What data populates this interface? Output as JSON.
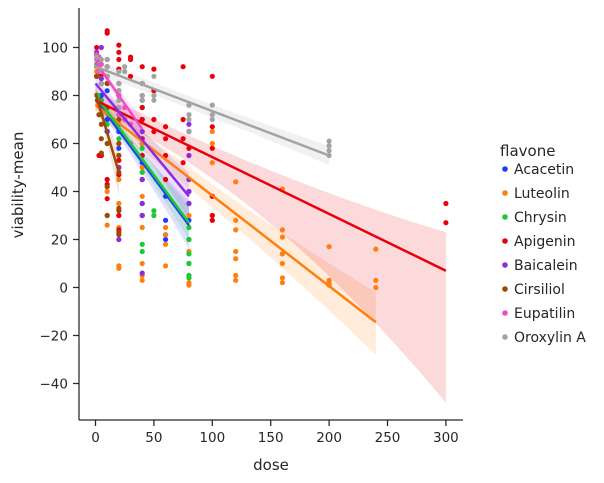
{
  "chart_data": {
    "type": "scatter",
    "subtype": "scatter-with-linear-regression-and-95%-ci-bands",
    "xlabel": "dose",
    "ylabel": "viability-mean",
    "xlim": [
      -13,
      315
    ],
    "ylim": [
      -56,
      115
    ],
    "xticks": [
      0,
      50,
      100,
      150,
      200,
      250,
      300
    ],
    "yticks": [
      -40,
      -20,
      0,
      20,
      40,
      60,
      80,
      100
    ],
    "grid": false,
    "legend": {
      "title": "flavone",
      "placement": "right"
    },
    "series": [
      {
        "name": "Acacetin",
        "color": "#1f3bff",
        "points": [
          [
            1,
            92
          ],
          [
            1,
            88
          ],
          [
            2,
            95
          ],
          [
            3,
            90
          ],
          [
            5,
            85
          ],
          [
            5,
            80
          ],
          [
            5,
            78
          ],
          [
            10,
            88
          ],
          [
            10,
            82
          ],
          [
            10,
            75
          ],
          [
            10,
            70
          ],
          [
            10,
            65
          ],
          [
            20,
            80
          ],
          [
            20,
            72
          ],
          [
            20,
            65
          ],
          [
            20,
            58
          ],
          [
            20,
            50
          ],
          [
            40,
            80
          ],
          [
            40,
            70
          ],
          [
            40,
            60
          ],
          [
            40,
            52
          ],
          [
            40,
            45
          ],
          [
            60,
            38
          ],
          [
            60,
            28
          ],
          [
            60,
            22
          ],
          [
            60,
            20
          ],
          [
            80,
            35
          ],
          [
            80,
            28
          ],
          [
            80,
            20
          ]
        ],
        "fit": {
          "x0": 0,
          "x1": 80,
          "y0": 78.5,
          "y1": 26,
          "ci_lo": [
            76,
            16
          ],
          "ci_hi": [
            82,
            36
          ]
        }
      },
      {
        "name": "Luteolin",
        "color": "#ff7f0e",
        "points": [
          [
            1,
            90
          ],
          [
            1,
            80
          ],
          [
            2,
            76
          ],
          [
            5,
            88
          ],
          [
            5,
            55
          ],
          [
            10,
            45
          ],
          [
            10,
            40
          ],
          [
            10,
            30
          ],
          [
            10,
            26
          ],
          [
            20,
            82
          ],
          [
            20,
            75
          ],
          [
            20,
            60
          ],
          [
            20,
            50
          ],
          [
            20,
            45
          ],
          [
            20,
            35
          ],
          [
            20,
            30
          ],
          [
            20,
            25
          ],
          [
            20,
            9
          ],
          [
            20,
            8
          ],
          [
            40,
            60
          ],
          [
            40,
            50
          ],
          [
            40,
            48
          ],
          [
            40,
            45
          ],
          [
            40,
            38
          ],
          [
            40,
            30
          ],
          [
            40,
            25
          ],
          [
            40,
            10
          ],
          [
            40,
            5
          ],
          [
            40,
            3
          ],
          [
            60,
            25
          ],
          [
            60,
            22
          ],
          [
            60,
            18
          ],
          [
            60,
            9
          ],
          [
            80,
            40
          ],
          [
            80,
            35
          ],
          [
            80,
            30
          ],
          [
            80,
            20
          ],
          [
            80,
            15
          ],
          [
            80,
            10
          ],
          [
            80,
            5
          ],
          [
            80,
            2
          ],
          [
            80,
            1
          ],
          [
            100,
            65
          ],
          [
            100,
            60
          ],
          [
            100,
            52
          ],
          [
            100,
            38
          ],
          [
            100,
            30
          ],
          [
            100,
            28
          ],
          [
            120,
            44
          ],
          [
            120,
            28
          ],
          [
            120,
            24
          ],
          [
            120,
            15
          ],
          [
            120,
            12
          ],
          [
            120,
            5
          ],
          [
            120,
            3
          ],
          [
            160,
            41
          ],
          [
            160,
            24
          ],
          [
            160,
            21
          ],
          [
            160,
            14
          ],
          [
            160,
            10
          ],
          [
            160,
            4
          ],
          [
            160,
            2
          ],
          [
            200,
            17
          ],
          [
            200,
            3
          ],
          [
            200,
            2
          ],
          [
            200,
            1
          ],
          [
            240,
            16
          ],
          [
            240,
            3
          ],
          [
            240,
            0
          ]
        ],
        "fit": {
          "x0": 0,
          "x1": 240,
          "y0": 76,
          "y1": -14.5,
          "ci_lo": [
            72,
            -28
          ],
          "ci_hi": [
            80,
            -2
          ]
        }
      },
      {
        "name": "Chrysin",
        "color": "#1ac938",
        "points": [
          [
            1,
            93
          ],
          [
            1,
            88
          ],
          [
            2,
            80
          ],
          [
            5,
            78
          ],
          [
            5,
            72
          ],
          [
            10,
            85
          ],
          [
            10,
            68
          ],
          [
            20,
            78
          ],
          [
            20,
            62
          ],
          [
            20,
            55
          ],
          [
            20,
            47
          ],
          [
            40,
            75
          ],
          [
            40,
            58
          ],
          [
            40,
            48
          ],
          [
            40,
            35
          ],
          [
            40,
            30
          ],
          [
            40,
            18
          ],
          [
            40,
            15
          ],
          [
            50,
            32
          ],
          [
            50,
            30
          ],
          [
            80,
            25
          ],
          [
            80,
            20
          ],
          [
            80,
            14
          ],
          [
            80,
            10
          ],
          [
            80,
            5
          ],
          [
            80,
            4
          ]
        ],
        "fit": {
          "x0": 0,
          "x1": 80,
          "y0": 80,
          "y1": 27,
          "ci_lo": [
            77,
            20
          ],
          "ci_hi": [
            83,
            34
          ]
        }
      },
      {
        "name": "Apigenin",
        "color": "#e8000b",
        "points": [
          [
            1,
            100
          ],
          [
            1,
            97
          ],
          [
            1,
            92
          ],
          [
            1,
            88
          ],
          [
            3,
            96
          ],
          [
            3,
            55
          ],
          [
            5,
            89
          ],
          [
            5,
            85
          ],
          [
            5,
            55
          ],
          [
            10,
            107
          ],
          [
            10,
            106
          ],
          [
            10,
            95
          ],
          [
            10,
            45
          ],
          [
            10,
            43
          ],
          [
            10,
            37
          ],
          [
            20,
            101
          ],
          [
            20,
            98
          ],
          [
            20,
            95
          ],
          [
            20,
            91
          ],
          [
            20,
            85
          ],
          [
            20,
            53
          ],
          [
            20,
            47
          ],
          [
            20,
            30
          ],
          [
            20,
            24
          ],
          [
            30,
            96
          ],
          [
            30,
            95
          ],
          [
            30,
            88
          ],
          [
            40,
            92
          ],
          [
            40,
            85
          ],
          [
            40,
            75
          ],
          [
            40,
            70
          ],
          [
            40,
            62
          ],
          [
            40,
            55
          ],
          [
            50,
            91
          ],
          [
            50,
            82
          ],
          [
            50,
            70
          ],
          [
            50,
            65
          ],
          [
            60,
            67
          ],
          [
            60,
            62
          ],
          [
            60,
            55
          ],
          [
            60,
            45
          ],
          [
            75,
            92
          ],
          [
            75,
            70
          ],
          [
            75,
            62
          ],
          [
            75,
            52
          ],
          [
            80,
            65
          ],
          [
            80,
            58
          ],
          [
            80,
            40
          ],
          [
            100,
            88
          ],
          [
            100,
            67
          ],
          [
            100,
            58
          ],
          [
            100,
            38
          ],
          [
            100,
            30
          ],
          [
            100,
            28
          ],
          [
            300,
            35
          ],
          [
            300,
            27
          ]
        ],
        "fit": {
          "x0": 0,
          "x1": 300,
          "y0": 78,
          "y1": 7,
          "ci_lo": [
            74,
            -48
          ],
          "ci_hi": [
            82,
            23
          ]
        }
      },
      {
        "name": "Baicalein",
        "color": "#8b2be2",
        "points": [
          [
            1,
            98
          ],
          [
            3,
            95
          ],
          [
            5,
            90
          ],
          [
            5,
            100
          ],
          [
            5,
            87
          ],
          [
            10,
            92
          ],
          [
            10,
            85
          ],
          [
            10,
            75
          ],
          [
            20,
            82
          ],
          [
            20,
            75
          ],
          [
            20,
            68
          ],
          [
            20,
            50
          ],
          [
            20,
            20
          ],
          [
            40,
            78
          ],
          [
            40,
            65
          ],
          [
            40,
            45
          ],
          [
            40,
            35
          ],
          [
            40,
            30
          ],
          [
            40,
            6
          ],
          [
            80,
            68
          ],
          [
            80,
            65
          ],
          [
            80,
            55
          ],
          [
            80,
            45
          ],
          [
            80,
            40
          ],
          [
            80,
            35
          ]
        ],
        "fit": {
          "x0": 0,
          "x1": 80,
          "y0": 85,
          "y1": 38,
          "ci_lo": [
            82,
            28
          ],
          "ci_hi": [
            88,
            48
          ]
        }
      },
      {
        "name": "Cirsiliol",
        "color": "#9f4800",
        "points": [
          [
            1,
            88
          ],
          [
            3,
            78
          ],
          [
            3,
            72
          ],
          [
            5,
            90
          ],
          [
            5,
            75
          ],
          [
            5,
            68
          ],
          [
            5,
            62
          ],
          [
            5,
            56
          ],
          [
            10,
            85
          ],
          [
            10,
            75
          ],
          [
            10,
            60
          ],
          [
            10,
            42
          ],
          [
            10,
            30
          ],
          [
            20,
            70
          ],
          [
            20,
            60
          ],
          [
            20,
            55
          ],
          [
            20,
            48
          ],
          [
            20,
            33
          ],
          [
            20,
            32
          ],
          [
            20,
            23
          ],
          [
            20,
            22
          ]
        ],
        "fit": {
          "x0": 0,
          "x1": 20,
          "y0": 81,
          "y1": 48,
          "ci_lo": [
            77,
            38
          ],
          "ci_hi": [
            85,
            58
          ]
        }
      },
      {
        "name": "Eupatilin",
        "color": "#f14cc1",
        "points": [
          [
            1,
            97
          ],
          [
            1,
            95
          ],
          [
            3,
            96
          ],
          [
            3,
            90
          ],
          [
            5,
            93
          ],
          [
            5,
            90
          ],
          [
            10,
            92
          ],
          [
            10,
            88
          ],
          [
            20,
            85
          ],
          [
            20,
            80
          ],
          [
            20,
            75
          ],
          [
            20,
            72
          ],
          [
            25,
            75
          ],
          [
            25,
            70
          ],
          [
            30,
            68
          ],
          [
            30,
            60
          ]
        ],
        "fit": {
          "x0": 0,
          "x1": 40,
          "y0": 94,
          "y1": 66,
          "ci_lo": [
            92,
            61
          ],
          "ci_hi": [
            96,
            71
          ]
        }
      },
      {
        "name": "Oroxylin A",
        "color": "#a3a3a3",
        "points": [
          [
            1,
            96
          ],
          [
            1,
            92
          ],
          [
            5,
            95
          ],
          [
            5,
            90
          ],
          [
            5,
            85
          ],
          [
            10,
            95
          ],
          [
            10,
            92
          ],
          [
            10,
            88
          ],
          [
            20,
            90
          ],
          [
            20,
            85
          ],
          [
            20,
            82
          ],
          [
            20,
            78
          ],
          [
            20,
            75
          ],
          [
            25,
            92
          ],
          [
            25,
            90
          ],
          [
            40,
            85
          ],
          [
            40,
            80
          ],
          [
            40,
            78
          ],
          [
            50,
            88
          ],
          [
            50,
            80
          ],
          [
            50,
            78
          ],
          [
            80,
            76
          ],
          [
            80,
            72
          ],
          [
            80,
            70
          ],
          [
            80,
            65
          ],
          [
            100,
            76
          ],
          [
            100,
            72
          ],
          [
            100,
            70
          ],
          [
            200,
            61
          ],
          [
            200,
            59
          ],
          [
            200,
            57
          ],
          [
            200,
            55
          ]
        ],
        "fit": {
          "x0": 0,
          "x1": 200,
          "y0": 92,
          "y1": 55,
          "ci_lo": [
            89,
            51
          ],
          "ci_hi": [
            95,
            59
          ]
        }
      }
    ]
  }
}
